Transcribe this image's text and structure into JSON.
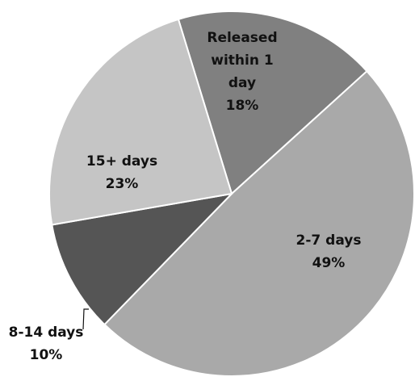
{
  "chart_data": {
    "type": "pie",
    "slices": [
      {
        "id": "released-within-1-day",
        "label_lines": [
          "Released",
          "within 1",
          "day"
        ],
        "percent_label": "18%",
        "value": 18,
        "color": "#808080"
      },
      {
        "id": "2-7-days",
        "label_lines": [
          "2-7 days"
        ],
        "percent_label": "49%",
        "value": 49,
        "color": "#a9a9a9"
      },
      {
        "id": "8-14-days",
        "label_lines": [
          "8-14 days"
        ],
        "percent_label": "10%",
        "value": 10,
        "color": "#555555"
      },
      {
        "id": "15-plus-days",
        "label_lines": [
          "15+ days"
        ],
        "percent_label": "23%",
        "value": 23,
        "color": "#c5c5c5"
      }
    ]
  }
}
